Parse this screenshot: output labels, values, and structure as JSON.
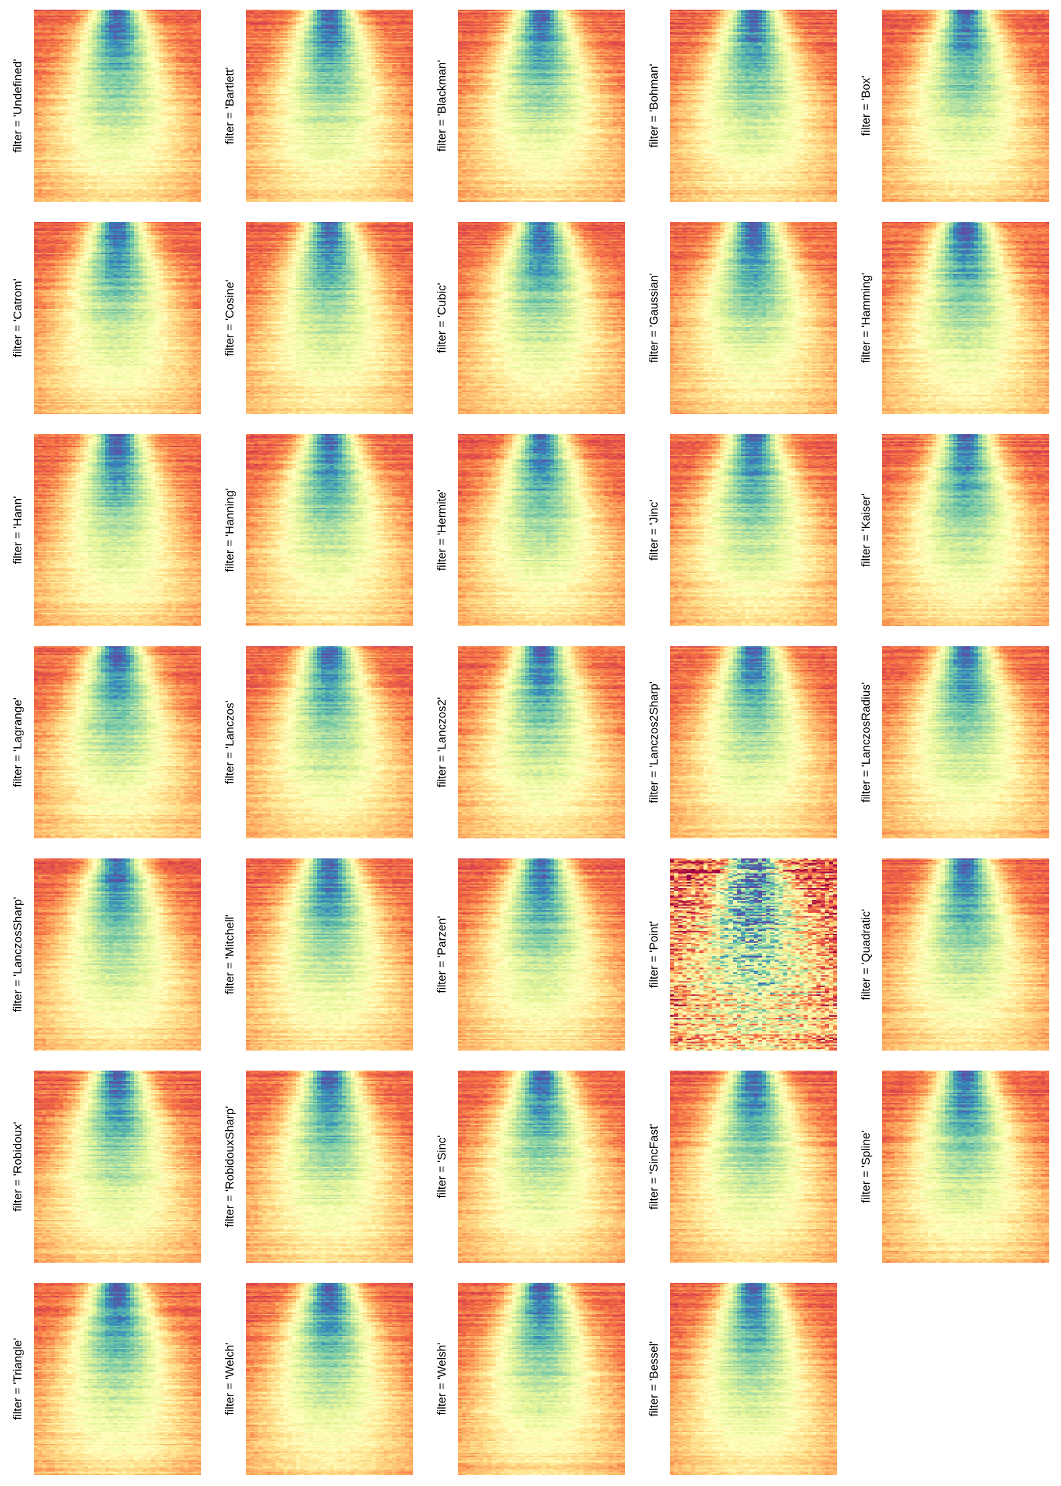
{
  "chart_data": {
    "type": "heatmap",
    "layout": {
      "columns": 5,
      "rows": 7
    },
    "colormap": [
      "#5e4fa2",
      "#3288bd",
      "#66c2a5",
      "#abdda4",
      "#e6f598",
      "#ffffbf",
      "#fee08b",
      "#fdae61",
      "#f46d43",
      "#d53e4f",
      "#9e0142"
    ],
    "facet_prefix": "filter = ",
    "panels": [
      {
        "label": "'Undefined'",
        "texture": "smooth"
      },
      {
        "label": "'Bartlett'",
        "texture": "smooth"
      },
      {
        "label": "'Blackman'",
        "texture": "smooth"
      },
      {
        "label": "'Bohman'",
        "texture": "smooth"
      },
      {
        "label": "'Box'",
        "texture": "smooth"
      },
      {
        "label": "'Catrom'",
        "texture": "smooth"
      },
      {
        "label": "'Cosine'",
        "texture": "smooth"
      },
      {
        "label": "'Cubic'",
        "texture": "smooth"
      },
      {
        "label": "'Gaussian'",
        "texture": "smooth"
      },
      {
        "label": "'Hamming'",
        "texture": "smooth"
      },
      {
        "label": "'Hann'",
        "texture": "smooth"
      },
      {
        "label": "'Hanning'",
        "texture": "smooth"
      },
      {
        "label": "'Hermite'",
        "texture": "smooth"
      },
      {
        "label": "'Jinc'",
        "texture": "smooth"
      },
      {
        "label": "'Kaiser'",
        "texture": "smooth"
      },
      {
        "label": "'Lagrange'",
        "texture": "smooth"
      },
      {
        "label": "'Lanczos'",
        "texture": "smooth"
      },
      {
        "label": "'Lanczos2'",
        "texture": "smooth"
      },
      {
        "label": "'Lanczos2Sharp'",
        "texture": "smooth"
      },
      {
        "label": "'LanczosRadius'",
        "texture": "smooth"
      },
      {
        "label": "'LanczosSharp'",
        "texture": "smooth"
      },
      {
        "label": "'Mitchell'",
        "texture": "smooth"
      },
      {
        "label": "'Parzen'",
        "texture": "smooth"
      },
      {
        "label": "'Point'",
        "texture": "noisy"
      },
      {
        "label": "'Quadratic'",
        "texture": "smooth"
      },
      {
        "label": "'Robidoux'",
        "texture": "smooth"
      },
      {
        "label": "'RobidouxSharp'",
        "texture": "smooth"
      },
      {
        "label": "'Sinc'",
        "texture": "smooth"
      },
      {
        "label": "'SincFast'",
        "texture": "smooth"
      },
      {
        "label": "'Spline'",
        "texture": "smooth"
      },
      {
        "label": "'Triangle'",
        "texture": "smooth"
      },
      {
        "label": "'Welch'",
        "texture": "smooth"
      },
      {
        "label": "'Welsh'",
        "texture": "smooth"
      },
      {
        "label": "'Bessel'",
        "texture": "smooth"
      }
    ]
  }
}
